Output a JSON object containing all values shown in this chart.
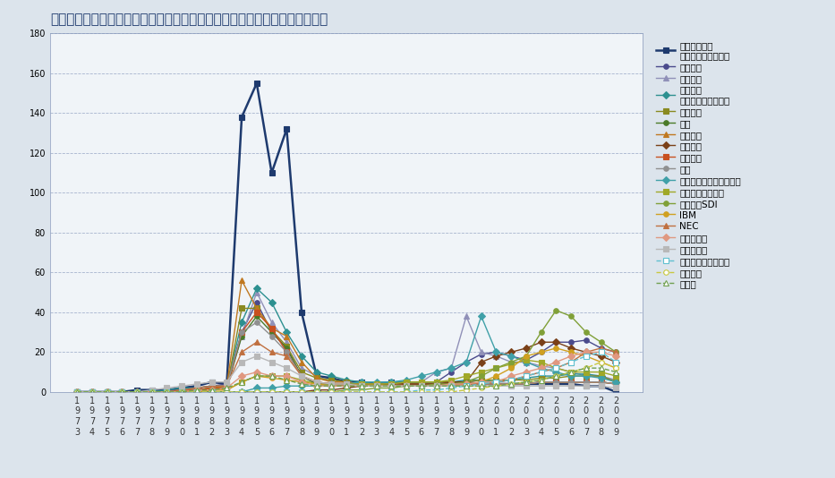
{
  "title": "太陽光発電技術における自国特許出願トップ２０の企業・機関の時系列変遷",
  "years": [
    1973,
    1974,
    1975,
    1976,
    1977,
    1978,
    1979,
    1980,
    1981,
    1982,
    1983,
    1984,
    1985,
    1986,
    1987,
    1988,
    1989,
    1990,
    1991,
    1992,
    1993,
    1994,
    1995,
    1996,
    1997,
    1998,
    1999,
    2000,
    2001,
    2002,
    2003,
    2004,
    2005,
    2006,
    2007,
    2008,
    2009
  ],
  "ylim": [
    0,
    180
  ],
  "yticks": [
    0,
    20,
    40,
    60,
    80,
    100,
    120,
    140,
    160,
    180
  ],
  "series": [
    {
      "name": "松下電器産業\n（現パナソニック）",
      "color": "#1e3a6e",
      "marker": "s",
      "linestyle": "-",
      "linewidth": 1.8,
      "markersize": 5,
      "markerfacecolor": "#1e3a6e",
      "values": [
        0,
        0,
        0,
        0,
        1,
        1,
        1,
        2,
        3,
        5,
        4,
        138,
        155,
        110,
        132,
        40,
        8,
        7,
        5,
        5,
        4,
        5,
        4,
        4,
        4,
        4,
        5,
        4,
        4,
        4,
        4,
        4,
        4,
        4,
        3,
        3,
        0
      ]
    },
    {
      "name": "シャープ",
      "color": "#4a4a8c",
      "marker": "o",
      "linestyle": "-",
      "linewidth": 1.0,
      "markersize": 4,
      "markerfacecolor": "#4a4a8c",
      "values": [
        0,
        0,
        0,
        0,
        0,
        0,
        1,
        1,
        2,
        3,
        4,
        30,
        45,
        30,
        22,
        8,
        4,
        4,
        3,
        3,
        3,
        4,
        5,
        5,
        5,
        10,
        15,
        19,
        20,
        18,
        16,
        20,
        25,
        25,
        26,
        22,
        20
      ]
    },
    {
      "name": "キャノン",
      "color": "#9090b8",
      "marker": "^",
      "linestyle": "-",
      "linewidth": 1.0,
      "markersize": 4,
      "markerfacecolor": "#9090b8",
      "values": [
        0,
        0,
        0,
        0,
        0,
        0,
        0,
        0,
        1,
        1,
        2,
        28,
        50,
        35,
        25,
        12,
        8,
        5,
        5,
        4,
        4,
        5,
        5,
        5,
        10,
        12,
        38,
        20,
        18,
        15,
        15,
        13,
        12,
        10,
        8,
        8,
        6
      ]
    },
    {
      "name": "三洋電機\n（現パナソニック）",
      "color": "#2d9090",
      "marker": "D",
      "linestyle": "-",
      "linewidth": 1.0,
      "markersize": 4,
      "markerfacecolor": "#2d9090",
      "values": [
        0,
        0,
        0,
        0,
        0,
        0,
        1,
        2,
        2,
        3,
        3,
        35,
        52,
        45,
        30,
        18,
        10,
        8,
        6,
        5,
        4,
        5,
        5,
        5,
        5,
        5,
        6,
        6,
        5,
        6,
        7,
        8,
        8,
        9,
        9,
        8,
        5
      ]
    },
    {
      "name": "三菱電機",
      "color": "#8a8a20",
      "marker": "s",
      "linestyle": "-",
      "linewidth": 1.0,
      "markersize": 4,
      "markerfacecolor": "#8a8a20",
      "values": [
        0,
        0,
        0,
        0,
        0,
        0,
        0,
        1,
        1,
        2,
        2,
        42,
        42,
        31,
        23,
        10,
        7,
        6,
        5,
        4,
        4,
        4,
        5,
        5,
        5,
        5,
        5,
        6,
        6,
        6,
        6,
        7,
        7,
        8,
        8,
        8,
        5
      ]
    },
    {
      "name": "日立",
      "color": "#4a7a28",
      "marker": "o",
      "linestyle": "-",
      "linewidth": 1.0,
      "markersize": 4,
      "markerfacecolor": "#4a7a28",
      "values": [
        0,
        0,
        0,
        0,
        0,
        0,
        0,
        1,
        1,
        2,
        2,
        28,
        38,
        30,
        22,
        8,
        4,
        3,
        3,
        3,
        3,
        3,
        3,
        3,
        3,
        3,
        4,
        4,
        4,
        4,
        4,
        5,
        5,
        5,
        5,
        5,
        4
      ]
    },
    {
      "name": "松下電工",
      "color": "#c07820",
      "marker": "^",
      "linestyle": "-",
      "linewidth": 1.0,
      "markersize": 4,
      "markerfacecolor": "#c07820",
      "values": [
        0,
        0,
        0,
        0,
        0,
        0,
        0,
        0,
        1,
        2,
        3,
        56,
        42,
        32,
        28,
        15,
        7,
        5,
        5,
        4,
        4,
        4,
        4,
        4,
        4,
        4,
        4,
        4,
        4,
        4,
        4,
        5,
        5,
        5,
        5,
        5,
        4
      ]
    },
    {
      "name": "サムソン",
      "color": "#7a4018",
      "marker": "D",
      "linestyle": "-",
      "linewidth": 1.0,
      "markersize": 4,
      "markerfacecolor": "#7a4018",
      "values": [
        0,
        0,
        0,
        0,
        0,
        0,
        0,
        0,
        0,
        0,
        0,
        0,
        0,
        0,
        0,
        0,
        1,
        1,
        2,
        3,
        3,
        4,
        4,
        4,
        4,
        5,
        5,
        15,
        18,
        20,
        22,
        25,
        25,
        22,
        20,
        18,
        15
      ]
    },
    {
      "name": "富士電機",
      "color": "#c85020",
      "marker": "s",
      "linestyle": "-",
      "linewidth": 1.0,
      "markersize": 4,
      "markerfacecolor": "#c85020",
      "values": [
        0,
        0,
        0,
        0,
        0,
        0,
        0,
        1,
        1,
        2,
        2,
        30,
        40,
        32,
        20,
        8,
        5,
        4,
        4,
        4,
        3,
        3,
        3,
        3,
        3,
        3,
        4,
        4,
        4,
        4,
        4,
        5,
        5,
        5,
        5,
        5,
        4
      ]
    },
    {
      "name": "東芝",
      "color": "#909090",
      "marker": "o",
      "linestyle": "-",
      "linewidth": 1.0,
      "markersize": 4,
      "markerfacecolor": "#909090",
      "values": [
        0,
        0,
        0,
        0,
        0,
        0,
        0,
        1,
        2,
        3,
        3,
        30,
        35,
        28,
        20,
        8,
        5,
        4,
        4,
        3,
        3,
        3,
        3,
        3,
        3,
        3,
        4,
        4,
        4,
        4,
        4,
        5,
        5,
        5,
        5,
        5,
        4
      ]
    },
    {
      "name": "半導体エネルギー研究所",
      "color": "#40a0a8",
      "marker": "D",
      "linestyle": "-",
      "linewidth": 1.0,
      "markersize": 4,
      "markerfacecolor": "#40a0a8",
      "values": [
        0,
        0,
        0,
        0,
        0,
        0,
        0,
        0,
        0,
        0,
        0,
        0,
        2,
        2,
        3,
        3,
        3,
        4,
        4,
        5,
        5,
        5,
        6,
        8,
        10,
        12,
        15,
        38,
        20,
        18,
        15,
        12,
        10,
        8,
        8,
        7,
        5
      ]
    },
    {
      "name": "セイコーエプソン",
      "color": "#a0a828",
      "marker": "s",
      "linestyle": "-",
      "linewidth": 1.0,
      "markersize": 4,
      "markerfacecolor": "#a0a828",
      "values": [
        0,
        0,
        0,
        0,
        0,
        0,
        0,
        0,
        0,
        1,
        1,
        5,
        8,
        8,
        8,
        6,
        4,
        4,
        4,
        4,
        4,
        4,
        5,
        5,
        5,
        6,
        8,
        10,
        12,
        14,
        16,
        15,
        12,
        10,
        10,
        10,
        8
      ]
    },
    {
      "name": "サムソンSDI",
      "color": "#80a038",
      "marker": "o",
      "linestyle": "-",
      "linewidth": 1.0,
      "markersize": 4,
      "markerfacecolor": "#80a038",
      "values": [
        0,
        0,
        0,
        0,
        0,
        0,
        0,
        0,
        0,
        0,
        0,
        0,
        0,
        0,
        0,
        0,
        0,
        0,
        1,
        1,
        2,
        2,
        3,
        3,
        4,
        4,
        5,
        8,
        12,
        15,
        18,
        30,
        41,
        38,
        30,
        25,
        20
      ]
    },
    {
      "name": "IBM",
      "color": "#d0a020",
      "marker": "o",
      "linestyle": "-",
      "linewidth": 1.0,
      "markersize": 4,
      "markerfacecolor": "#d0a020",
      "values": [
        0,
        0,
        0,
        0,
        0,
        0,
        0,
        0,
        0,
        1,
        1,
        5,
        8,
        7,
        6,
        5,
        4,
        3,
        3,
        3,
        3,
        3,
        3,
        3,
        3,
        3,
        4,
        5,
        8,
        12,
        18,
        20,
        22,
        20,
        18,
        15,
        12
      ]
    },
    {
      "name": "NEC",
      "color": "#c07040",
      "marker": "^",
      "linestyle": "-",
      "linewidth": 1.0,
      "markersize": 4,
      "markerfacecolor": "#c07040",
      "values": [
        0,
        0,
        0,
        0,
        0,
        0,
        0,
        1,
        2,
        3,
        3,
        20,
        25,
        20,
        18,
        8,
        5,
        4,
        4,
        3,
        3,
        3,
        3,
        3,
        3,
        3,
        4,
        4,
        5,
        6,
        8,
        10,
        12,
        15,
        20,
        22,
        20
      ]
    },
    {
      "name": "シーメンス",
      "color": "#e09880",
      "marker": "D",
      "linestyle": "-",
      "linewidth": 1.0,
      "markersize": 4,
      "markerfacecolor": "#e09880",
      "values": [
        0,
        0,
        0,
        0,
        0,
        0,
        0,
        0,
        1,
        1,
        2,
        8,
        10,
        8,
        8,
        5,
        3,
        3,
        3,
        3,
        3,
        3,
        3,
        3,
        3,
        4,
        4,
        5,
        5,
        8,
        10,
        12,
        15,
        18,
        20,
        20,
        18
      ]
    },
    {
      "name": "工業技術院",
      "color": "#b8b8b8",
      "marker": "s",
      "linestyle": "-",
      "linewidth": 1.0,
      "markersize": 4,
      "markerfacecolor": "#b8b8b8",
      "values": [
        0,
        0,
        0,
        0,
        0,
        1,
        2,
        3,
        4,
        5,
        5,
        15,
        18,
        15,
        12,
        8,
        5,
        4,
        4,
        3,
        3,
        3,
        3,
        3,
        3,
        3,
        3,
        3,
        3,
        3,
        3,
        3,
        3,
        3,
        3,
        3,
        2
      ]
    },
    {
      "name": "フラウンホーファー",
      "color": "#60c0d0",
      "marker": "s",
      "linestyle": "--",
      "linewidth": 1.0,
      "markersize": 4,
      "markerfacecolor": "white",
      "values": [
        0,
        0,
        0,
        0,
        0,
        0,
        0,
        0,
        0,
        0,
        0,
        0,
        0,
        0,
        0,
        0,
        0,
        0,
        0,
        0,
        0,
        0,
        0,
        1,
        1,
        2,
        3,
        4,
        5,
        6,
        8,
        10,
        12,
        15,
        18,
        20,
        15
      ]
    },
    {
      "name": "コダック",
      "color": "#c8c840",
      "marker": "o",
      "linestyle": "--",
      "linewidth": 1.0,
      "markersize": 4,
      "markerfacecolor": "white",
      "values": [
        0,
        0,
        0,
        0,
        0,
        0,
        0,
        0,
        0,
        0,
        0,
        0,
        0,
        0,
        0,
        0,
        0,
        0,
        0,
        0,
        0,
        0,
        0,
        0,
        0,
        0,
        1,
        2,
        3,
        4,
        5,
        6,
        8,
        10,
        12,
        15,
        12
      ]
    },
    {
      "name": "富士通",
      "color": "#70a050",
      "marker": "^",
      "linestyle": "--",
      "linewidth": 1.0,
      "markersize": 4,
      "markerfacecolor": "white",
      "values": [
        0,
        0,
        0,
        0,
        0,
        0,
        0,
        0,
        1,
        1,
        2,
        5,
        8,
        8,
        6,
        4,
        3,
        3,
        3,
        3,
        3,
        3,
        3,
        3,
        3,
        3,
        3,
        3,
        3,
        4,
        5,
        6,
        8,
        10,
        12,
        12,
        10
      ]
    }
  ],
  "outer_bg": "#dce4ec",
  "plot_bg": "#f0f4f8",
  "grid_color": "#8899bb",
  "title_color": "#1e3a6e",
  "title_fontsize": 11,
  "tick_fontsize": 7,
  "legend_fontsize": 7.5
}
